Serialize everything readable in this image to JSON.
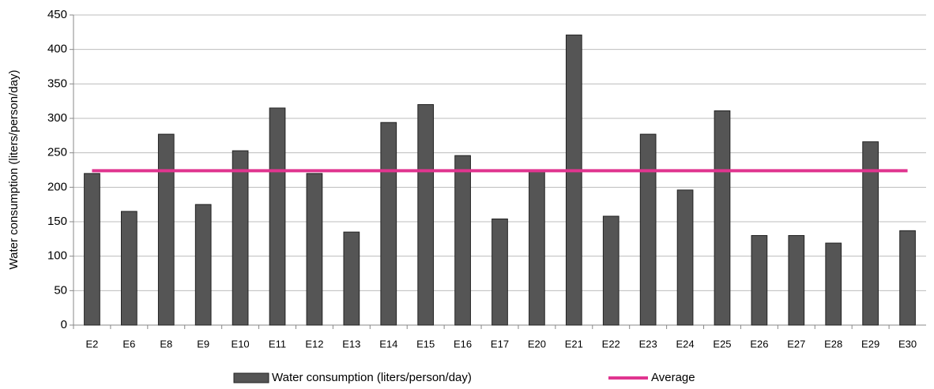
{
  "chart_data": {
    "type": "bar",
    "y_label": "Water consumption (liters/person/day)",
    "categories": [
      "E2",
      "E6",
      "E8",
      "E9",
      "E10",
      "E11",
      "E12",
      "E13",
      "E14",
      "E15",
      "E16",
      "E17",
      "E20",
      "E21",
      "E22",
      "E23",
      "E24",
      "E25",
      "E26",
      "E27",
      "E28",
      "E29",
      "E30"
    ],
    "series": [
      {
        "name": "Water consumption (liters/person/day)",
        "type": "bar",
        "color": "#555555",
        "values": [
          220,
          165,
          277,
          175,
          253,
          315,
          220,
          135,
          294,
          320,
          246,
          154,
          224,
          421,
          158,
          277,
          196,
          311,
          130,
          130,
          119,
          266,
          137
        ]
      },
      {
        "name": "Average",
        "type": "line",
        "color": "#e0358f",
        "values": [
          224,
          224,
          224,
          224,
          224,
          224,
          224,
          224,
          224,
          224,
          224,
          224,
          224,
          224,
          224,
          224,
          224,
          224,
          224,
          224,
          224,
          224,
          224
        ]
      }
    ],
    "ylim": [
      0,
      450
    ],
    "yticks": [
      0,
      50,
      100,
      150,
      200,
      250,
      300,
      350,
      400,
      450
    ],
    "grid": true,
    "legend": "bottom"
  }
}
